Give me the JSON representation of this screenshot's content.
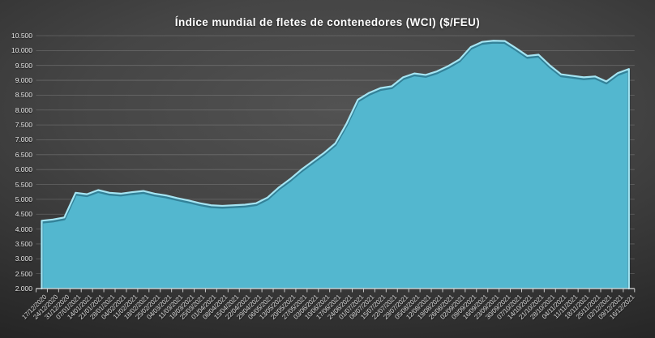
{
  "title": "Índice mundial de fletes de contenedores (WCI) ($/FEU)",
  "chart_data": {
    "type": "area",
    "title": "Índice mundial de fletes de contenedores (WCI) ($/FEU)",
    "xlabel": "",
    "ylabel": "",
    "ylim": [
      2000,
      10500
    ],
    "y_step": 500,
    "grid": true,
    "legend": "none",
    "x_label_rotation": -45,
    "colors": {
      "area_fill": "#53b7cf",
      "edge_highlight": "#a5e5f3",
      "edge_shadow": "rgba(0,45,65,0.38)",
      "gridline": "rgba(200,200,200,0.28)",
      "axis_line": "#d9d9d9",
      "tick": "#c9c9c9",
      "label_text": "#e0e0e0",
      "title_text": "#ffffff",
      "background_center": "#525252",
      "background_corner": "#1b1b1b"
    },
    "y_ticks": [
      "2.000",
      "2.500",
      "3.000",
      "3.500",
      "4.000",
      "4.500",
      "5.000",
      "5.500",
      "6.000",
      "6.500",
      "7.000",
      "7.500",
      "8.000",
      "8.500",
      "9.000",
      "9.500",
      "10.000",
      "10.500"
    ],
    "categories": [
      "17/12/2020",
      "24/12/2020",
      "31/12/2020",
      "07/01/2021",
      "14/01/2021",
      "21/01/2021",
      "28/01/2021",
      "04/02/2021",
      "11/02/2021",
      "18/02/2021",
      "25/02/2021",
      "04/03/2021",
      "11/03/2021",
      "18/03/2021",
      "25/03/2021",
      "01/04/2021",
      "08/04/2021",
      "15/04/2021",
      "22/04/2021",
      "29/04/2021",
      "06/05/2021",
      "13/05/2021",
      "20/05/2021",
      "27/05/2021",
      "03/06/2021",
      "10/06/2021",
      "17/06/2021",
      "24/06/2021",
      "01/07/2021",
      "08/07/2021",
      "15/07/2021",
      "22/07/2021",
      "29/07/2021",
      "05/08/2021",
      "12/08/2021",
      "19/08/2021",
      "26/08/2021",
      "02/09/2021",
      "09/09/2021",
      "16/09/2021",
      "23/09/2021",
      "30/09/2021",
      "07/10/2021",
      "14/10/2021",
      "21/10/2021",
      "28/10/2021",
      "04/11/2021",
      "11/11/2021",
      "18/11/2021",
      "25/11/2021",
      "02/12/2021",
      "09/12/2021",
      "16/12/2021"
    ],
    "values": [
      4280,
      4320,
      4390,
      5220,
      5170,
      5310,
      5220,
      5190,
      5240,
      5280,
      5190,
      5130,
      5040,
      4960,
      4870,
      4800,
      4780,
      4800,
      4820,
      4870,
      5060,
      5400,
      5680,
      6000,
      6280,
      6560,
      6880,
      7550,
      8350,
      8580,
      8740,
      8800,
      9100,
      9230,
      9180,
      9300,
      9480,
      9700,
      10120,
      10290,
      10330,
      10320,
      10080,
      9820,
      9860,
      9500,
      9200,
      9150,
      9100,
      9130,
      8960,
      9240,
      9380
    ]
  }
}
